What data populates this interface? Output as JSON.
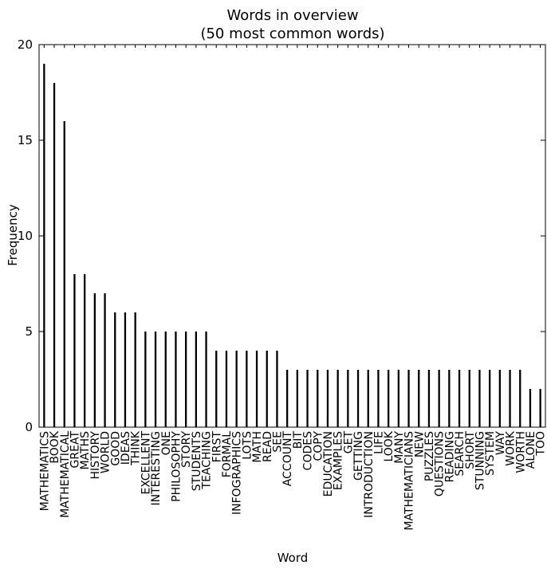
{
  "chart_data": {
    "type": "bar",
    "title": "Words in overview",
    "subtitle": "(50 most common words)",
    "xlabel": "Word",
    "ylabel": "Frequency",
    "ylim": [
      0,
      20
    ],
    "yticks": [
      "0",
      "5",
      "10",
      "15",
      "20"
    ],
    "categories": [
      "MATHEMATICS",
      "BOOK",
      "MATHEMATICAL",
      "GREAT",
      "MATHS",
      "HISTORY",
      "WORLD",
      "GOOD",
      "IDEAS",
      "THINK",
      "EXCELLENT",
      "INTERESTING",
      "ONE",
      "PHILOSOPHY",
      "STORY",
      "STUDENTS",
      "TEACHING",
      "FIRST",
      "FORMAL",
      "INFOGRAPHICS",
      "LOTS",
      "MATH",
      "READ",
      "SEE",
      "ACCOUNT",
      "BIT",
      "CODES",
      "COPY",
      "EDUCATION",
      "EXAMPLES",
      "GET",
      "GETTING",
      "INTRODUCTION",
      "LIFE",
      "LOOK",
      "MANY",
      "MATHEMATICIANS",
      "NEW",
      "PUZZLES",
      "QUESTIONS",
      "READING",
      "SEARCH",
      "SHORT",
      "STUNNING",
      "SYSTEM",
      "WAY",
      "WORK",
      "WORTH",
      "ALONE",
      "TOO"
    ],
    "values": [
      19,
      18,
      16,
      8,
      8,
      7,
      7,
      6,
      6,
      6,
      5,
      5,
      5,
      5,
      5,
      5,
      5,
      4,
      4,
      4,
      4,
      4,
      4,
      4,
      3,
      3,
      3,
      3,
      3,
      3,
      3,
      3,
      3,
      3,
      3,
      3,
      3,
      3,
      3,
      3,
      3,
      3,
      3,
      3,
      3,
      3,
      3,
      3,
      2,
      2
    ],
    "grid": false,
    "bar_color": "#000000"
  }
}
